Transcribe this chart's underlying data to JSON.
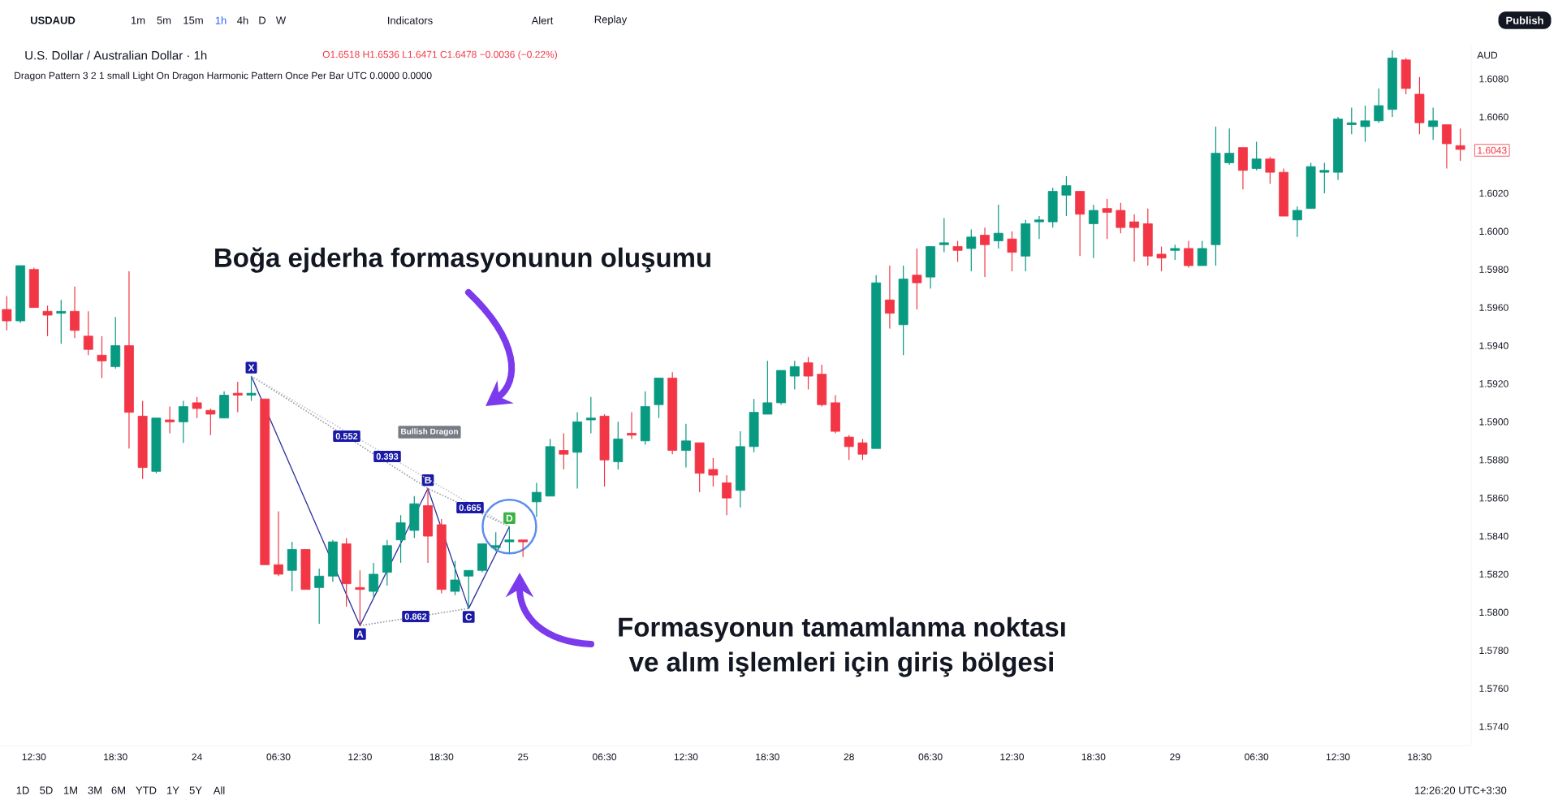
{
  "chart_data": {
    "type": "candlestick",
    "categories": [
      null,
      null,
      "12:30",
      null,
      null,
      null,
      null,
      null,
      "18:30",
      null,
      null,
      null,
      null,
      null,
      "24",
      null,
      null,
      null,
      null,
      null,
      "06:30",
      null,
      null,
      null,
      null,
      null,
      "12:30",
      null,
      null,
      null,
      null,
      null,
      "18:30",
      null,
      null,
      null,
      null,
      null,
      "25",
      null,
      null,
      null,
      null,
      null,
      "06:30",
      null,
      null,
      null,
      null,
      null,
      "12:30",
      null,
      null,
      null,
      null,
      null,
      "18:30",
      null,
      null,
      null,
      null,
      null,
      "28",
      null,
      null,
      null,
      null,
      null,
      "06:30",
      null,
      null,
      null,
      null,
      null,
      "12:30",
      null,
      null,
      null,
      null,
      null,
      "18:30",
      null,
      null,
      null,
      null,
      null,
      "29",
      null,
      null,
      null,
      null,
      null,
      "06:30",
      null,
      null,
      null,
      null,
      null,
      "12:30",
      null,
      null,
      null,
      null,
      null,
      "18:30",
      null,
      null,
      null
    ],
    "ohlc": [
      [
        1.5959,
        1.5966,
        1.5948,
        1.5953
      ],
      [
        1.5953,
        1.5982,
        1.5952,
        1.5982
      ],
      [
        1.598,
        1.5981,
        1.596,
        1.596
      ],
      [
        1.5958,
        1.5961,
        1.5945,
        1.5956
      ],
      [
        1.5957,
        1.5964,
        1.5941,
        1.5958
      ],
      [
        1.5958,
        1.5971,
        1.5944,
        1.5948
      ],
      [
        1.5945,
        1.5958,
        1.5935,
        1.5938
      ],
      [
        1.5935,
        1.5945,
        1.5923,
        1.5932
      ],
      [
        1.5929,
        1.5955,
        1.5928,
        1.594
      ],
      [
        1.594,
        1.5979,
        1.5886,
        1.5905
      ],
      [
        1.5903,
        1.5911,
        1.587,
        1.5876
      ],
      [
        1.5874,
        1.5902,
        1.5873,
        1.5902
      ],
      [
        1.5901,
        1.5908,
        1.5894,
        1.59
      ],
      [
        1.59,
        1.5911,
        1.5889,
        1.5908
      ],
      [
        1.591,
        1.5913,
        1.5902,
        1.5907
      ],
      [
        1.5906,
        1.5907,
        1.5893,
        1.5904
      ],
      [
        1.5902,
        1.5916,
        1.5902,
        1.5914
      ],
      [
        1.5915,
        1.5921,
        1.5905,
        1.5914
      ],
      [
        1.5914,
        1.5924,
        1.5911,
        1.5915
      ],
      [
        1.5912,
        1.5912,
        1.5825,
        1.5825
      ],
      [
        1.5825,
        1.5853,
        1.5819,
        1.582
      ],
      [
        1.5822,
        1.5837,
        1.5811,
        1.5833
      ],
      [
        1.5833,
        1.5833,
        1.5812,
        1.5812
      ],
      [
        1.5813,
        1.5823,
        1.5794,
        1.5819
      ],
      [
        1.5819,
        1.5838,
        1.5816,
        1.5837
      ],
      [
        1.5836,
        1.5839,
        1.5803,
        1.5815
      ],
      [
        1.5813,
        1.5822,
        1.5793,
        1.5812
      ],
      [
        1.5811,
        1.5826,
        1.5808,
        1.582
      ],
      [
        1.5821,
        1.5838,
        1.5814,
        1.5835
      ],
      [
        1.5838,
        1.5851,
        1.5826,
        1.5847
      ],
      [
        1.5843,
        1.5861,
        1.5839,
        1.5857
      ],
      [
        1.5856,
        1.5865,
        1.5826,
        1.584
      ],
      [
        1.5846,
        1.5849,
        1.581,
        1.5812
      ],
      [
        1.5811,
        1.5827,
        1.5809,
        1.5817
      ],
      [
        1.5819,
        1.5822,
        1.5802,
        1.5822
      ],
      [
        1.5822,
        1.5836,
        1.5821,
        1.5836
      ],
      [
        1.5834,
        1.5842,
        1.5832,
        1.5835
      ],
      [
        1.5837,
        1.5845,
        1.5831,
        1.5838
      ],
      [
        1.5838,
        1.5838,
        1.5829,
        1.5837
      ],
      [
        1.5858,
        1.5868,
        1.585,
        1.5863
      ],
      [
        1.5861,
        1.5891,
        1.5861,
        1.5887
      ],
      [
        1.5885,
        1.5894,
        1.5875,
        1.5883
      ],
      [
        1.5884,
        1.5905,
        1.5865,
        1.59
      ],
      [
        1.5901,
        1.5913,
        1.5894,
        1.5902
      ],
      [
        1.5903,
        1.5904,
        1.5866,
        1.588
      ],
      [
        1.5879,
        1.59,
        1.5875,
        1.5891
      ],
      [
        1.5894,
        1.5905,
        1.5891,
        1.5893
      ],
      [
        1.589,
        1.5916,
        1.5888,
        1.5908
      ],
      [
        1.5909,
        1.5923,
        1.5902,
        1.5923
      ],
      [
        1.5923,
        1.5926,
        1.5883,
        1.5885
      ],
      [
        1.5885,
        1.5899,
        1.5876,
        1.589
      ],
      [
        1.5889,
        1.5889,
        1.5863,
        1.5873
      ],
      [
        1.5875,
        1.5881,
        1.5866,
        1.5872
      ],
      [
        1.5868,
        1.5872,
        1.5851,
        1.586
      ],
      [
        1.5864,
        1.5895,
        1.5855,
        1.5887
      ],
      [
        1.5887,
        1.5912,
        1.5884,
        1.5905
      ],
      [
        1.5904,
        1.5932,
        1.5904,
        1.591
      ],
      [
        1.591,
        1.5927,
        1.5909,
        1.5927
      ],
      [
        1.5924,
        1.5932,
        1.5917,
        1.5929
      ],
      [
        1.5931,
        1.5934,
        1.5917,
        1.5924
      ],
      [
        1.5925,
        1.593,
        1.5908,
        1.5909
      ],
      [
        1.591,
        1.5914,
        1.5894,
        1.5895
      ],
      [
        1.5892,
        1.5893,
        1.588,
        1.5887
      ],
      [
        1.5889,
        1.5891,
        1.588,
        1.5883
      ],
      [
        1.5886,
        1.5977,
        1.5886,
        1.5973
      ],
      [
        1.5964,
        1.5982,
        1.5949,
        1.5957
      ],
      [
        1.5951,
        1.5982,
        1.5935,
        1.5975
      ],
      [
        1.5977,
        1.5991,
        1.5959,
        1.5973
      ],
      [
        1.5976,
        1.5992,
        1.597,
        1.5992
      ],
      [
        1.5993,
        1.6007,
        1.5989,
        1.5994
      ],
      [
        1.5992,
        1.5995,
        1.5984,
        1.599
      ],
      [
        1.5991,
        1.6001,
        1.5979,
        1.5997
      ],
      [
        1.5998,
        1.6002,
        1.5976,
        1.5993
      ],
      [
        1.5995,
        1.6014,
        1.5991,
        1.5999
      ],
      [
        1.5996,
        1.6,
        1.5979,
        1.5989
      ],
      [
        1.5987,
        1.6006,
        1.5979,
        1.6004
      ],
      [
        1.6005,
        1.6008,
        1.5996,
        1.6006
      ],
      [
        1.6005,
        1.6023,
        1.6002,
        1.6021
      ],
      [
        1.6019,
        1.6029,
        1.6008,
        1.6024
      ],
      [
        1.6021,
        1.6021,
        1.5987,
        1.6009
      ],
      [
        1.6004,
        1.6014,
        1.5986,
        1.6011
      ],
      [
        1.6012,
        1.6017,
        1.5996,
        1.601
      ],
      [
        1.6011,
        1.6015,
        1.5999,
        1.6002
      ],
      [
        1.6005,
        1.6009,
        1.5984,
        1.6002
      ],
      [
        1.6004,
        1.6012,
        1.5982,
        1.5987
      ],
      [
        1.5988,
        1.5992,
        1.5979,
        1.5986
      ],
      [
        1.599,
        1.5993,
        1.5985,
        1.5991
      ],
      [
        1.5991,
        1.5995,
        1.5981,
        1.5982
      ],
      [
        1.5982,
        1.5995,
        1.5982,
        1.5991
      ],
      [
        1.5993,
        1.6055,
        1.5982,
        1.6041
      ],
      [
        1.6036,
        1.6054,
        1.6035,
        1.6041
      ],
      [
        1.6044,
        1.6044,
        1.6022,
        1.6032
      ],
      [
        1.6033,
        1.6047,
        1.6032,
        1.6038
      ],
      [
        1.6038,
        1.6039,
        1.6025,
        1.6031
      ],
      [
        1.6031,
        1.6033,
        1.6008,
        1.6008
      ],
      [
        1.6006,
        1.6013,
        1.5997,
        1.6011
      ],
      [
        1.6012,
        1.6036,
        1.6012,
        1.6034
      ],
      [
        1.6031,
        1.6036,
        1.602,
        1.6032
      ],
      [
        1.6031,
        1.606,
        1.6027,
        1.6059
      ],
      [
        1.6056,
        1.6065,
        1.6051,
        1.6057
      ],
      [
        1.6055,
        1.6066,
        1.6047,
        1.6058
      ],
      [
        1.6058,
        1.6075,
        1.6057,
        1.6066
      ],
      [
        1.6064,
        1.6095,
        1.606,
        1.6091
      ],
      [
        1.609,
        1.6091,
        1.6072,
        1.6075
      ],
      [
        1.6072,
        1.6081,
        1.6051,
        1.6057
      ],
      [
        1.6055,
        1.6065,
        1.6048,
        1.6058
      ],
      [
        1.6056,
        1.6056,
        1.6033,
        1.6046
      ],
      [
        1.6045,
        1.6054,
        1.6037,
        1.6043
      ]
    ],
    "series": [
      {
        "type": "line",
        "color": "#2a2e9c",
        "line_style": "solid",
        "values": [
          null,
          null,
          null,
          null,
          null,
          null,
          null,
          null,
          null,
          null,
          null,
          null,
          null,
          null,
          null,
          null,
          null,
          null,
          1.5924,
          null,
          null,
          null,
          null,
          null,
          null,
          null,
          1.5793,
          null,
          null,
          null,
          null,
          1.5865,
          null,
          null,
          1.5802,
          null,
          null,
          1.5845,
          null,
          null,
          null,
          null,
          null,
          null,
          null,
          null,
          null,
          null,
          null,
          null,
          null,
          null,
          null,
          null,
          null,
          null,
          null,
          null,
          null,
          null,
          null,
          null,
          null,
          null,
          null,
          null,
          null,
          null,
          null,
          null,
          null,
          null,
          null,
          null,
          null,
          null,
          null,
          null,
          null,
          null,
          null,
          null,
          null,
          null,
          null,
          null,
          null,
          null,
          null,
          null,
          null,
          null,
          null,
          null,
          null,
          null,
          null,
          null,
          null,
          null,
          null,
          null,
          null,
          null,
          null,
          null,
          null,
          null
        ],
        "value_labels": [
          null,
          null,
          null,
          null,
          null,
          null,
          null,
          null,
          null,
          null,
          null,
          null,
          null,
          null,
          null,
          null,
          null,
          null,
          "X",
          null,
          null,
          null,
          null,
          null,
          null,
          null,
          "A",
          null,
          null,
          null,
          null,
          "B",
          null,
          null,
          "C",
          null,
          null,
          "D",
          null,
          null,
          null,
          null,
          null,
          null,
          null,
          null,
          null,
          null,
          null,
          null,
          null,
          null,
          null,
          null,
          null,
          null,
          null,
          null,
          null,
          null,
          null,
          null,
          null,
          null,
          null,
          null,
          null,
          null,
          null,
          null,
          null,
          null,
          null,
          null,
          null,
          null,
          null,
          null,
          null,
          null,
          null,
          null,
          null,
          null,
          null,
          null,
          null,
          null,
          null,
          null,
          null,
          null,
          null,
          null,
          null,
          null,
          null,
          null,
          null,
          null,
          null,
          null,
          null,
          null,
          null,
          null,
          null,
          null
        ]
      },
      {
        "type": "line",
        "color": "#9598a1",
        "line_style": "dotted",
        "values": [
          null,
          null,
          null,
          null,
          null,
          null,
          null,
          null,
          null,
          null,
          null,
          null,
          null,
          null,
          null,
          null,
          null,
          null,
          1.5924,
          null,
          null,
          null,
          null,
          null,
          null,
          null,
          null,
          null,
          null,
          null,
          null,
          1.5865,
          null,
          null,
          null,
          null,
          null,
          1.5845,
          null,
          null,
          null,
          null,
          null,
          null,
          null,
          null,
          null,
          null,
          null,
          null,
          null,
          null,
          null,
          null,
          null,
          null,
          null,
          null,
          null,
          null,
          null,
          null,
          null,
          null,
          null,
          null,
          null,
          null,
          null,
          null,
          null,
          null,
          null,
          null,
          null,
          null,
          null,
          null,
          null,
          null,
          null,
          null,
          null,
          null,
          null,
          null,
          null,
          null,
          null,
          null,
          null,
          null,
          null,
          null,
          null,
          null,
          null,
          null,
          null,
          null,
          null,
          null,
          null,
          null,
          null,
          null,
          null,
          null
        ]
      },
      {
        "type": "line",
        "color": "#c3c6ce",
        "line_style": "dotted",
        "values": [
          null,
          null,
          null,
          null,
          null,
          null,
          null,
          null,
          null,
          null,
          null,
          null,
          null,
          null,
          null,
          null,
          null,
          null,
          1.5924,
          null,
          null,
          null,
          null,
          null,
          null,
          null,
          null,
          null,
          null,
          null,
          null,
          null,
          null,
          null,
          null,
          null,
          null,
          1.5845,
          null,
          null,
          null,
          null,
          null,
          null,
          null,
          null,
          null,
          null,
          null,
          null,
          null,
          null,
          null,
          null,
          null,
          null,
          null,
          null,
          null,
          null,
          null,
          null,
          null,
          null,
          null,
          null,
          null,
          null,
          null,
          null,
          null,
          null,
          null,
          null,
          null,
          null,
          null,
          null,
          null,
          null,
          null,
          null,
          null,
          null,
          null,
          null,
          null,
          null,
          null,
          null,
          null,
          null,
          null,
          null,
          null,
          null,
          null,
          null,
          null,
          null,
          null,
          null,
          null,
          null,
          null,
          null,
          null,
          null
        ]
      },
      {
        "type": "line",
        "color": "#9598a1",
        "line_style": "dotted",
        "values": [
          null,
          null,
          null,
          null,
          null,
          null,
          null,
          null,
          null,
          null,
          null,
          null,
          null,
          null,
          null,
          null,
          null,
          null,
          null,
          null,
          null,
          null,
          null,
          null,
          null,
          null,
          1.5793,
          null,
          null,
          null,
          null,
          null,
          null,
          null,
          1.5802,
          null,
          null,
          null,
          null,
          null,
          null,
          null,
          null,
          null,
          null,
          null,
          null,
          null,
          null,
          null,
          null,
          null,
          null,
          null,
          null,
          null,
          null,
          null,
          null,
          null,
          null,
          null,
          null,
          null,
          null,
          null,
          null,
          null,
          null,
          null,
          null,
          null,
          null,
          null,
          null,
          null,
          null,
          null,
          null,
          null,
          null,
          null,
          null,
          null,
          null,
          null,
          null,
          null,
          null,
          null,
          null,
          null,
          null,
          null,
          null,
          null,
          null,
          null,
          null,
          null,
          null,
          null,
          null,
          null,
          null,
          null,
          null,
          null
        ]
      }
    ],
    "ylim": [
      1.573,
      1.6098
    ],
    "yticks": [
      {
        "value": 1.574,
        "label": "1.5740"
      },
      {
        "value": 1.576,
        "label": "1.5760"
      },
      {
        "value": 1.578,
        "label": "1.5780"
      },
      {
        "value": 1.58,
        "label": "1.5800"
      },
      {
        "value": 1.582,
        "label": "1.5820"
      },
      {
        "value": 1.584,
        "label": "1.5840"
      },
      {
        "value": 1.586,
        "label": "1.5860"
      },
      {
        "value": 1.588,
        "label": "1.5880"
      },
      {
        "value": 1.59,
        "label": "1.5900"
      },
      {
        "value": 1.592,
        "label": "1.5920"
      },
      {
        "value": 1.594,
        "label": "1.5940"
      },
      {
        "value": 1.596,
        "label": "1.5960"
      },
      {
        "value": 1.598,
        "label": "1.5980"
      },
      {
        "value": 1.6,
        "label": "1.6000"
      },
      {
        "value": 1.602,
        "label": "1.6020"
      },
      {
        "value": 1.606,
        "label": "1.6060"
      },
      {
        "value": 1.608,
        "label": "1.6080"
      }
    ],
    "annotations": [
      "USDAUD",
      "1m",
      "5m",
      "15m",
      "1h",
      "4h",
      "D",
      "W",
      "Indicators",
      "Alert",
      "Replay",
      "Publish",
      "U.S. Dollar / Australian Dollar · 1h",
      "O1.6518 H1.6536 L1.6471 C1.6478 −0.0036 (−0.22%)",
      "Dragon Pattern 3 2 1 small Light On Dragon Harmonic Pattern Once Per Bar UTC 0.0000 0.0000",
      "Boğa ejderha formasyonunun oluşumu",
      "Formasyonun tamamlanma noktası",
      "ve alım işlemleri için giriş bölgesi",
      "AUD",
      "1D",
      "5D",
      "1M",
      "3M",
      "6M",
      "YTD",
      "1Y",
      "5Y",
      "All",
      "12:26:20 UTC+3:30",
      "0.552",
      "0.393",
      "0.665",
      "0.862",
      "Bullish Dragon",
      "1.6043"
    ]
  }
}
